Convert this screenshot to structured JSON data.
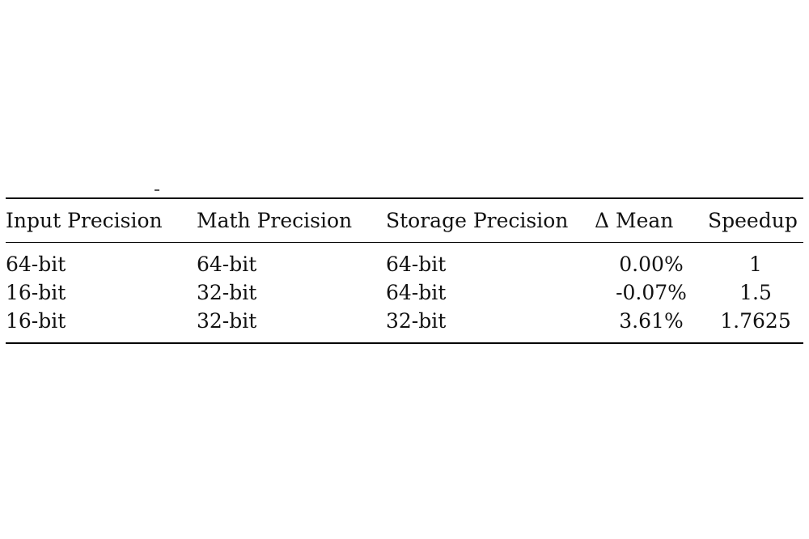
{
  "table": {
    "headers": [
      "Input Precision",
      "Math Precision",
      "Storage Precision",
      "Δ Mean",
      "Speedup"
    ],
    "rows": [
      {
        "input": "64-bit",
        "math": "64-bit",
        "storage": "64-bit",
        "delta_mean": "0.00%",
        "speedup": "1"
      },
      {
        "input": "16-bit",
        "math": "32-bit",
        "storage": "64-bit",
        "delta_mean": "-0.07%",
        "speedup": "1.5"
      },
      {
        "input": "16-bit",
        "math": "32-bit",
        "storage": "32-bit",
        "delta_mean": "3.61%",
        "speedup": "1.7625"
      }
    ]
  }
}
